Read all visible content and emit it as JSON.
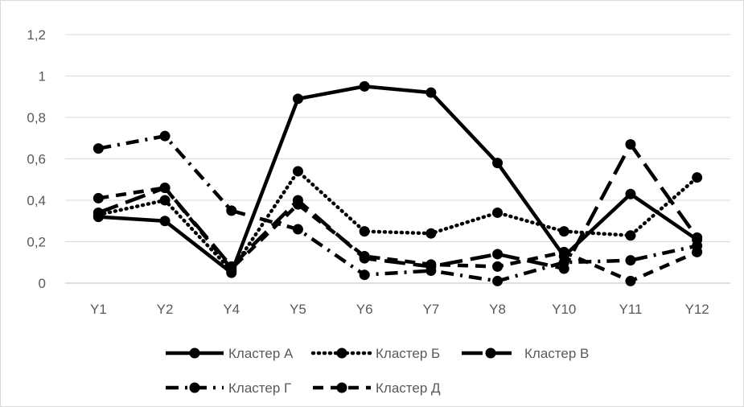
{
  "chart_data": {
    "type": "line",
    "title": "",
    "xlabel": "",
    "ylabel": "",
    "categories": [
      "Y1",
      "Y2",
      "Y4",
      "Y5",
      "Y6",
      "Y7",
      "Y8",
      "Y10",
      "Y11",
      "Y12"
    ],
    "ylim": [
      0,
      1.2
    ],
    "yticks": [
      "0",
      "0,2",
      "0,4",
      "0,6",
      "0,8",
      "1",
      "1,2"
    ],
    "grid": true,
    "legend_position": "bottom",
    "series": [
      {
        "name": "Кластер А",
        "style": "solid",
        "values": [
          0.32,
          0.3,
          0.05,
          0.89,
          0.95,
          0.92,
          0.58,
          0.13,
          0.43,
          0.21
        ]
      },
      {
        "name": "Кластер Б",
        "style": "dotted",
        "values": [
          0.33,
          0.4,
          0.06,
          0.54,
          0.25,
          0.24,
          0.34,
          0.25,
          0.23,
          0.51
        ]
      },
      {
        "name": "Кластер В",
        "style": "long-dash",
        "values": [
          0.34,
          0.46,
          0.08,
          0.4,
          0.12,
          0.08,
          0.14,
          0.07,
          0.67,
          0.22
        ]
      },
      {
        "name": "Кластер Г",
        "style": "dash-dot",
        "values": [
          0.65,
          0.71,
          0.35,
          0.26,
          0.04,
          0.06,
          0.01,
          0.1,
          0.11,
          0.18
        ]
      },
      {
        "name": "Кластер Д",
        "style": "dash",
        "values": [
          0.41,
          0.46,
          0.07,
          0.38,
          0.13,
          0.09,
          0.08,
          0.15,
          0.01,
          0.15
        ]
      }
    ]
  }
}
